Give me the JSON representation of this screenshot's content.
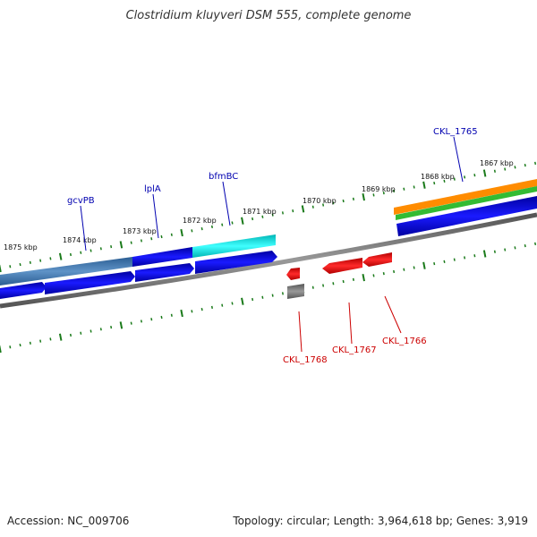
{
  "map": {
    "title": "Clostridium kluyveri DSM 555, complete genome",
    "accession_text": "Accession: NC_009706",
    "topology_text": "Topology: circular; Length: 3,964,618 bp; Genes: 3,919"
  },
  "tick_labels": [
    "1875 kbp",
    "1874 kbp",
    "1873 kbp",
    "1872 kbp",
    "1871 kbp",
    "1870 kbp",
    "1869 kbp",
    "1868 kbp",
    "1867 kbp"
  ],
  "gene_labels_top": [
    "gcvPB",
    "lplA",
    "bfmBC",
    "CKL_1765"
  ],
  "gene_labels_bottom": [
    "CKL_1768",
    "CKL_1767",
    "CKL_1766"
  ],
  "colors": {
    "backbone": "#808080",
    "tick": "#1a7a1a",
    "forward_gene": "#0000e0",
    "reverse_gene": "#e00000",
    "label_forward": "#0000b0",
    "label_reverse": "#cc0000",
    "cyan": "#00e5e5",
    "steelblue": "#4a7fb5",
    "orange": "#ff8c00",
    "green": "#33bb33",
    "gray_gene": "#666666"
  }
}
